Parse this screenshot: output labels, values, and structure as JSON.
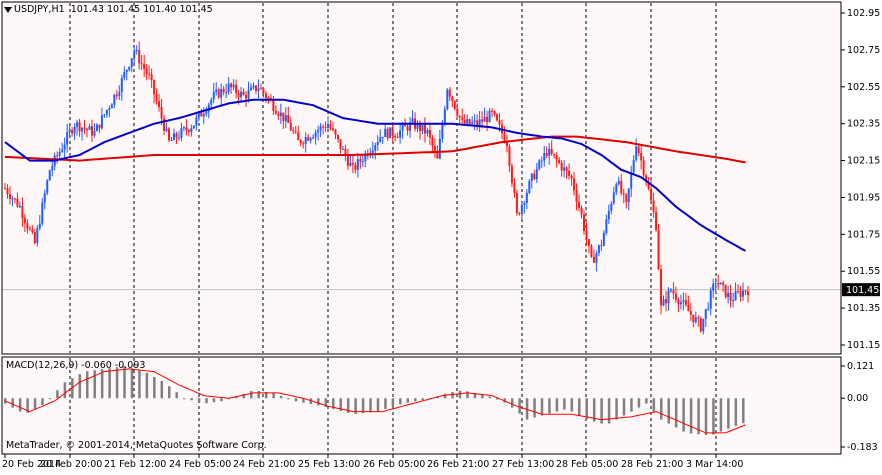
{
  "header": {
    "symbol": "USDJPY,H1",
    "ohlc": "101.43 101.45 101.40 101.45"
  },
  "indicator": {
    "label": "MACD(12,26,9) -0.060 -0.093",
    "axis_labels": [
      "0.121",
      "0.00",
      "-0.183"
    ],
    "axis_values": [
      0.121,
      0.0,
      -0.183
    ]
  },
  "footer": {
    "copyright": "MetaTrader, © 2001-2014, MetaQuotes Software Corp."
  },
  "price_axis": {
    "labels": [
      "102.95",
      "102.75",
      "102.55",
      "102.35",
      "102.15",
      "101.95",
      "101.75",
      "101.55",
      "101.35",
      "101.15"
    ],
    "values": [
      102.95,
      102.75,
      102.55,
      102.35,
      102.15,
      101.95,
      101.75,
      101.55,
      101.35,
      101.15
    ],
    "current_price": "101.45"
  },
  "time_axis": {
    "labels": [
      "20 Feb 2014",
      "20 Feb 20:00",
      "21 Feb 12:00",
      "24 Feb 05:00",
      "24 Feb 21:00",
      "25 Feb 13:00",
      "26 Feb 05:00",
      "26 Feb 21:00",
      "27 Feb 13:00",
      "28 Feb 05:00",
      "28 Feb 21:00",
      "3 Mar 14:00"
    ]
  },
  "colors": {
    "background": "#fff8f8",
    "bull": "#1e5eff",
    "bear": "#ff1a1a",
    "ma_fast": "#0000cc",
    "ma_slow": "#dd0000",
    "macd_hist": "#808080",
    "macd_signal": "#ff0000",
    "current_price_bg": "#000000"
  },
  "chart_data": {
    "type": "candlestick",
    "symbol": "USDJPY",
    "timeframe": "H1",
    "ylim": [
      101.1,
      102.99
    ],
    "last_price": 101.45,
    "price_keypoints": [
      [
        0,
        102.0
      ],
      [
        6,
        101.9
      ],
      [
        12,
        101.7
      ],
      [
        18,
        102.1
      ],
      [
        28,
        102.35
      ],
      [
        36,
        102.3
      ],
      [
        46,
        102.55
      ],
      [
        52,
        102.75
      ],
      [
        58,
        102.6
      ],
      [
        66,
        102.25
      ],
      [
        76,
        102.35
      ],
      [
        84,
        102.5
      ],
      [
        90,
        102.55
      ],
      [
        96,
        102.5
      ],
      [
        102,
        102.55
      ],
      [
        108,
        102.45
      ],
      [
        114,
        102.35
      ],
      [
        118,
        102.25
      ],
      [
        124,
        102.3
      ],
      [
        130,
        102.35
      ],
      [
        136,
        102.2
      ],
      [
        140,
        102.1
      ],
      [
        146,
        102.2
      ],
      [
        152,
        102.3
      ],
      [
        158,
        102.3
      ],
      [
        164,
        102.35
      ],
      [
        170,
        102.3
      ],
      [
        174,
        102.15
      ],
      [
        178,
        102.55
      ],
      [
        184,
        102.35
      ],
      [
        190,
        102.35
      ],
      [
        196,
        102.4
      ],
      [
        202,
        102.25
      ],
      [
        206,
        101.85
      ],
      [
        212,
        102.05
      ],
      [
        218,
        102.2
      ],
      [
        222,
        102.15
      ],
      [
        228,
        102.05
      ],
      [
        232,
        101.85
      ],
      [
        236,
        101.6
      ],
      [
        240,
        101.7
      ],
      [
        246,
        102.05
      ],
      [
        250,
        101.9
      ],
      [
        254,
        102.25
      ],
      [
        258,
        102.05
      ],
      [
        262,
        101.8
      ],
      [
        264,
        101.35
      ],
      [
        268,
        101.45
      ],
      [
        274,
        101.35
      ],
      [
        280,
        101.25
      ],
      [
        286,
        101.5
      ],
      [
        292,
        101.4
      ],
      [
        298,
        101.45
      ]
    ],
    "ma_fast_keypoints": [
      [
        0,
        102.25
      ],
      [
        10,
        102.15
      ],
      [
        20,
        102.15
      ],
      [
        30,
        102.18
      ],
      [
        40,
        102.25
      ],
      [
        50,
        102.3
      ],
      [
        60,
        102.35
      ],
      [
        70,
        102.38
      ],
      [
        80,
        102.42
      ],
      [
        90,
        102.46
      ],
      [
        100,
        102.48
      ],
      [
        112,
        102.48
      ],
      [
        124,
        102.45
      ],
      [
        136,
        102.38
      ],
      [
        150,
        102.35
      ],
      [
        166,
        102.35
      ],
      [
        180,
        102.35
      ],
      [
        196,
        102.33
      ],
      [
        206,
        102.3
      ],
      [
        216,
        102.28
      ],
      [
        224,
        102.27
      ],
      [
        232,
        102.24
      ],
      [
        240,
        102.18
      ],
      [
        248,
        102.1
      ],
      [
        256,
        102.06
      ],
      [
        262,
        102.0
      ],
      [
        270,
        101.9
      ],
      [
        280,
        101.8
      ],
      [
        290,
        101.72
      ],
      [
        298,
        101.66
      ]
    ],
    "ma_slow_keypoints": [
      [
        0,
        102.17
      ],
      [
        30,
        102.15
      ],
      [
        60,
        102.18
      ],
      [
        100,
        102.18
      ],
      [
        140,
        102.18
      ],
      [
        180,
        102.2
      ],
      [
        200,
        102.25
      ],
      [
        220,
        102.28
      ],
      [
        230,
        102.28
      ],
      [
        250,
        102.25
      ],
      [
        270,
        102.2
      ],
      [
        290,
        102.16
      ],
      [
        298,
        102.14
      ]
    ],
    "macd_hist_keypoints": [
      [
        0,
        -0.02
      ],
      [
        8,
        -0.06
      ],
      [
        16,
        -0.02
      ],
      [
        24,
        0.06
      ],
      [
        32,
        0.1
      ],
      [
        40,
        0.11
      ],
      [
        48,
        0.12
      ],
      [
        56,
        0.1
      ],
      [
        64,
        0.06
      ],
      [
        72,
        0.0
      ],
      [
        80,
        -0.02
      ],
      [
        88,
        -0.01
      ],
      [
        100,
        0.03
      ],
      [
        108,
        0.02
      ],
      [
        116,
        -0.01
      ],
      [
        128,
        -0.03
      ],
      [
        140,
        -0.06
      ],
      [
        150,
        -0.05
      ],
      [
        160,
        -0.02
      ],
      [
        172,
        0.0
      ],
      [
        178,
        0.02
      ],
      [
        184,
        0.03
      ],
      [
        194,
        0.01
      ],
      [
        202,
        -0.02
      ],
      [
        210,
        -0.08
      ],
      [
        218,
        -0.06
      ],
      [
        226,
        -0.04
      ],
      [
        234,
        -0.08
      ],
      [
        242,
        -0.1
      ],
      [
        250,
        -0.06
      ],
      [
        258,
        -0.02
      ],
      [
        264,
        -0.08
      ],
      [
        274,
        -0.13
      ],
      [
        284,
        -0.14
      ],
      [
        292,
        -0.11
      ],
      [
        298,
        -0.09
      ]
    ],
    "macd_signal_keypoints": [
      [
        0,
        -0.01
      ],
      [
        10,
        -0.05
      ],
      [
        20,
        -0.01
      ],
      [
        30,
        0.06
      ],
      [
        40,
        0.1
      ],
      [
        50,
        0.11
      ],
      [
        60,
        0.1
      ],
      [
        70,
        0.05
      ],
      [
        80,
        0.01
      ],
      [
        90,
        0.0
      ],
      [
        100,
        0.02
      ],
      [
        110,
        0.02
      ],
      [
        120,
        0.0
      ],
      [
        130,
        -0.03
      ],
      [
        140,
        -0.05
      ],
      [
        152,
        -0.05
      ],
      [
        164,
        -0.02
      ],
      [
        176,
        0.01
      ],
      [
        186,
        0.02
      ],
      [
        196,
        0.01
      ],
      [
        206,
        -0.03
      ],
      [
        216,
        -0.06
      ],
      [
        228,
        -0.06
      ],
      [
        240,
        -0.08
      ],
      [
        252,
        -0.07
      ],
      [
        262,
        -0.05
      ],
      [
        272,
        -0.09
      ],
      [
        282,
        -0.13
      ],
      [
        290,
        -0.13
      ],
      [
        298,
        -0.1
      ]
    ]
  }
}
